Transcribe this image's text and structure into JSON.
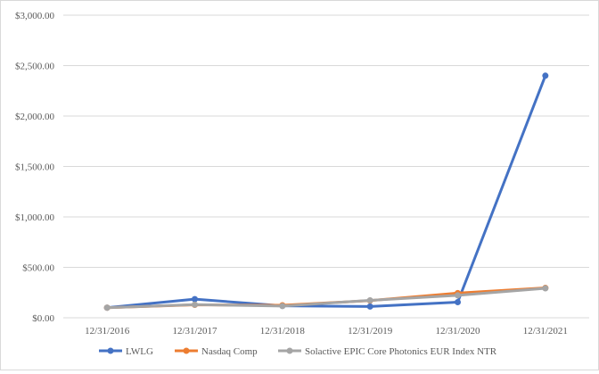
{
  "chart_data": {
    "type": "line",
    "categories": [
      "12/31/2016",
      "12/31/2017",
      "12/31/2018",
      "12/31/2019",
      "12/31/2020",
      "12/31/2021"
    ],
    "y_tick_labels": [
      "$0.00",
      "$500.00",
      "$1,000.00",
      "$1,500.00",
      "$2,000.00",
      "$2,500.00",
      "$3,000.00"
    ],
    "y_ticks": [
      0,
      500,
      1000,
      1500,
      2000,
      2500,
      3000
    ],
    "ylim": [
      0,
      3000
    ],
    "grid": true,
    "legend_position": "bottom",
    "series": [
      {
        "name": "LWLG",
        "color": "#4472c4",
        "values": [
          100,
          185,
          118,
          112,
          155,
          2400
        ]
      },
      {
        "name": "Nasdaq Comp",
        "color": "#ed7d31",
        "values": [
          100,
          128,
          124,
          170,
          245,
          296
        ]
      },
      {
        "name": "Solactive EPIC Core Photonics EUR Index NTR",
        "color": "#a5a5a5",
        "values": [
          100,
          130,
          116,
          173,
          222,
          292
        ]
      }
    ]
  }
}
